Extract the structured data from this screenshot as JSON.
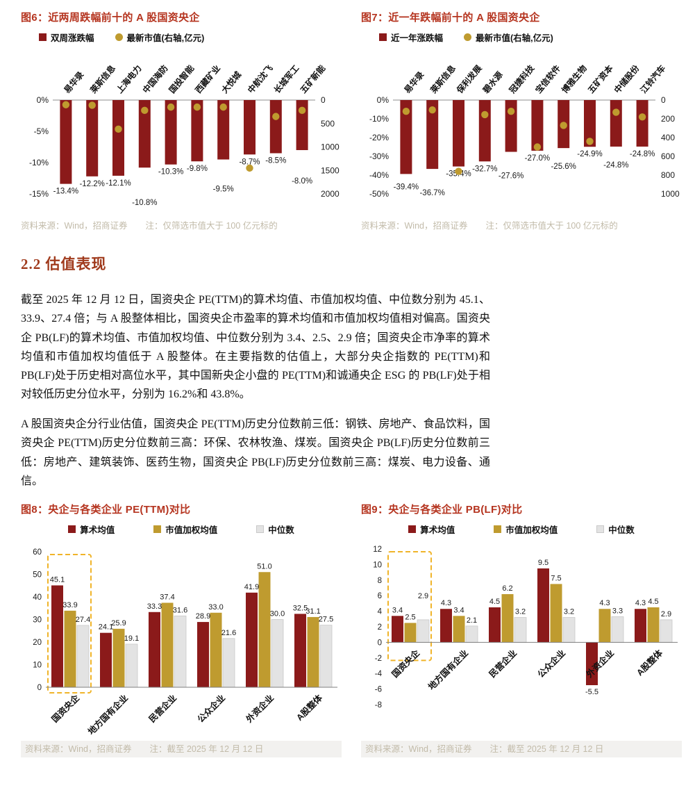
{
  "colors": {
    "bar_red": "#8b1a1a",
    "gold": "#bf9b2f",
    "gray_bar": "#e3e3e3",
    "title_red": "#b5341f",
    "heading_red": "#a03a1c",
    "source_gray": "#c2bba9",
    "highlight": "#f0b429"
  },
  "section": {
    "heading": "2.2 估值表现",
    "para1": "截至 2025 年 12 月 12 日，国资央企 PE(TTM)的算术均值、市值加权均值、中位数分别为 45.1、33.9、27.4 倍；与 A 股整体相比，国资央企市盈率的算术均值和市值加权均值相对偏高。国资央企 PB(LF)的算术均值、市值加权均值、中位数分别为 3.4、2.5、2.9 倍；国资央企市净率的算术均值和市值加权均值低于 A 股整体。在主要指数的估值上，大部分央企指数的 PE(TTM)和 PB(LF)处于历史相对高位水平，其中国新央企小盘的 PE(TTM)和诚通央企 ESG 的 PB(LF)处于相对较低历史分位水平，分别为 16.2%和 43.8%。",
    "para2": "A 股国资央企分行业估值，国资央企 PE(TTM)历史分位数前三低：钢铁、房地产、食品饮料，国资央企 PE(TTM)历史分位数前三高：环保、农林牧渔、煤炭。国资央企 PB(LF)历史分位数前三低：房地产、建筑装饰、医药生物，国资央企 PB(LF)历史分位数前三高：煤炭、电力设备、通信。"
  },
  "figures": {
    "fig6": {
      "title": "图6：近两周跌幅前十的 A 股国资央企",
      "legend_bar": "双周涨跌幅",
      "legend_dot": "最新市值(右轴,亿元)",
      "source": "资料来源：Wind，招商证券",
      "note": "注：仅筛选市值大于 100 亿元标的",
      "chart_data": {
        "type": "bar",
        "categories": [
          "易华录",
          "莱斯信息",
          "上海电力",
          "中国海防",
          "国投智能",
          "西藏矿业",
          "大悦城",
          "中航沈飞",
          "长城军工",
          "五矿新能"
        ],
        "series": [
          {
            "name": "双周涨跌幅",
            "type": "bar",
            "axis": "left",
            "unit": "%",
            "values": [
              -13.4,
              -12.2,
              -12.1,
              -10.8,
              -10.3,
              -9.8,
              -9.5,
              -8.7,
              -8.5,
              -8.0
            ]
          },
          {
            "name": "最新市值(右轴,亿元)",
            "type": "scatter",
            "axis": "right",
            "unit": "亿元",
            "values": [
              100,
              110,
              620,
              220,
              150,
              150,
              150,
              1450,
              350,
              220
            ]
          }
        ],
        "left_axis": {
          "min": -15,
          "max": 0,
          "tick_step": 5,
          "format": "percent"
        },
        "right_axis": {
          "min": 0,
          "max": 2000,
          "tick_step": 500,
          "reversed": true
        }
      }
    },
    "fig7": {
      "title": "图7：近一年跌幅前十的 A 股国资央企",
      "legend_bar": "近一年涨跌幅",
      "legend_dot": "最新市值(右轴,亿元)",
      "source": "资料来源：Wind，招商证券",
      "note": "注：仅筛选市值大于 100 亿元标的",
      "chart_data": {
        "type": "bar",
        "categories": [
          "易华录",
          "莱斯信息",
          "保利发展",
          "碧水源",
          "冠捷科技",
          "宝信软件",
          "博雅生物",
          "五矿资本",
          "中储股份",
          "江铃汽车"
        ],
        "series": [
          {
            "name": "近一年涨跌幅",
            "type": "bar",
            "axis": "left",
            "unit": "%",
            "values": [
              -39.4,
              -36.7,
              -35.4,
              -32.7,
              -27.6,
              -27.0,
              -25.6,
              -24.9,
              -24.8,
              -24.8
            ]
          },
          {
            "name": "最新市值(右轴,亿元)",
            "type": "scatter",
            "axis": "right",
            "unit": "亿元",
            "values": [
              120,
              105,
              760,
              155,
              120,
              500,
              270,
              440,
              130,
              180
            ]
          }
        ],
        "left_axis": {
          "min": -50,
          "max": 0,
          "tick_step": 10,
          "format": "percent"
        },
        "right_axis": {
          "min": 0,
          "max": 1000,
          "tick_step": 200,
          "reversed": true
        }
      }
    },
    "fig8": {
      "title": "图8：央企与各类企业 PE(TTM)对比",
      "legend": [
        "算术均值",
        "市值加权均值",
        "中位数"
      ],
      "source": "资料来源：Wind，招商证券",
      "note": "注：截至 2025 年 12 月 12 日",
      "chart_data": {
        "type": "bar",
        "categories": [
          "国资央企",
          "地方国有企业",
          "民营企业",
          "公众企业",
          "外资企业",
          "A股整体"
        ],
        "series": [
          {
            "name": "算术均值",
            "values": [
              45.1,
              24.1,
              33.3,
              28.9,
              41.9,
              32.5
            ]
          },
          {
            "name": "市值加权均值",
            "values": [
              33.9,
              25.9,
              37.4,
              33.0,
              51.0,
              31.1
            ]
          },
          {
            "name": "中位数",
            "values": [
              27.4,
              19.1,
              31.6,
              21.6,
              30.0,
              27.5
            ]
          }
        ],
        "y_axis": {
          "min": 0,
          "max": 60,
          "tick_step": 10
        },
        "highlight_group": "国资央企"
      }
    },
    "fig9": {
      "title": "图9：央企与各类企业 PB(LF)对比",
      "legend": [
        "算术均值",
        "市值加权均值",
        "中位数"
      ],
      "source": "资料来源：Wind，招商证券",
      "note": "注：截至 2025 年 12 月 12 日",
      "chart_data": {
        "type": "bar",
        "categories": [
          "国资央企",
          "地方国有企业",
          "民营企业",
          "公众企业",
          "外资企业",
          "A股整体"
        ],
        "series": [
          {
            "name": "算术均值",
            "values": [
              3.4,
              4.3,
              4.5,
              9.5,
              -5.5,
              4.3
            ]
          },
          {
            "name": "市值加权均值",
            "values": [
              2.5,
              3.4,
              6.2,
              7.5,
              4.3,
              4.5
            ]
          },
          {
            "name": "中位数",
            "values": [
              2.9,
              2.1,
              3.2,
              3.2,
              3.3,
              2.9
            ]
          }
        ],
        "y_axis": {
          "min": -8,
          "max": 12,
          "tick_step": 2
        },
        "highlight_group": "国资央企"
      }
    }
  }
}
